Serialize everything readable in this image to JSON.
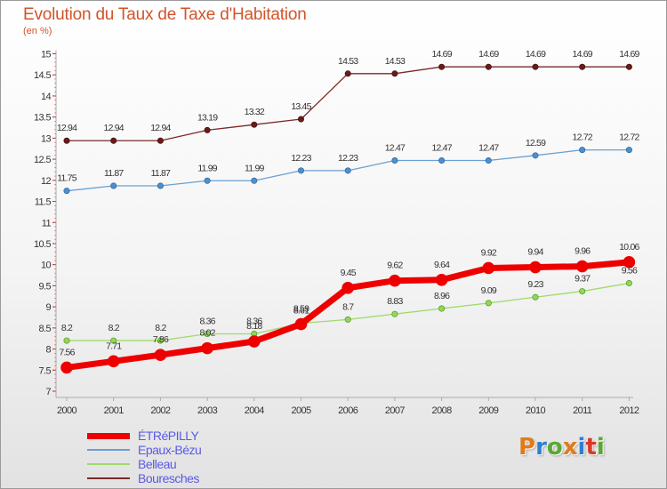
{
  "title": "Evolution du Taux de Taxe d'Habitation",
  "subtitle": "(en %)",
  "logo": {
    "text": "Proxiti",
    "colors": [
      "#e07b1a",
      "#2e7fd1",
      "#5aa832",
      "#e07b1a",
      "#2e7fd1",
      "#d73a2a",
      "#5aa832"
    ]
  },
  "chart_data": {
    "type": "line",
    "title": "Evolution du Taux de Taxe d'Habitation",
    "ylabel": "(en %)",
    "xlabel": "",
    "x": [
      "2000",
      "2001",
      "2002",
      "2003",
      "2004",
      "2005",
      "2006",
      "2007",
      "2008",
      "2009",
      "2010",
      "2011",
      "2012"
    ],
    "ylim": [
      7,
      15
    ],
    "yticks": [
      "7",
      "7.5",
      "8",
      "8.5",
      "9",
      "9.5",
      "10",
      "10.5",
      "11",
      "11.5",
      "12",
      "12.5",
      "13",
      "13.5",
      "14",
      "14.5",
      "15"
    ],
    "grid": false,
    "legend": "bottom-left",
    "series": [
      {
        "name": "ÉTRéPILLY",
        "color": "#ee0000",
        "values": [
          7.56,
          7.71,
          7.86,
          8.02,
          8.18,
          8.59,
          9.45,
          9.62,
          9.64,
          9.92,
          9.94,
          9.96,
          10.06
        ],
        "labels": [
          "7.56",
          "7.71",
          "7.86",
          "8.02",
          "8.18",
          "8.59",
          "9.45",
          "9.62",
          "9.64",
          "9.92",
          "9.94",
          "9.96",
          "10.06"
        ]
      },
      {
        "name": "Epaux-Bézu",
        "color": "#6aa0d2",
        "values": [
          11.75,
          11.87,
          11.87,
          11.99,
          11.99,
          12.23,
          12.23,
          12.47,
          12.47,
          12.47,
          12.59,
          12.72,
          12.72
        ],
        "labels": [
          "11.75",
          "11.87",
          "11.87",
          "11.99",
          "11.99",
          "12.23",
          "12.23",
          "12.47",
          "12.47",
          "12.47",
          "12.59",
          "12.72",
          "12.72"
        ]
      },
      {
        "name": "Belleau",
        "color": "#9fda6a",
        "values": [
          8.2,
          8.2,
          8.2,
          8.36,
          8.36,
          8.61,
          8.7,
          8.83,
          8.96,
          9.09,
          9.23,
          9.37,
          9.56
        ],
        "labels": [
          "8.2",
          "8.2",
          "8.2",
          "8.36",
          "8.36",
          "8.61",
          "8.7",
          "8.83",
          "8.96",
          "9.09",
          "9.23",
          "9.37",
          "9.56"
        ]
      },
      {
        "name": "Bouresches",
        "color": "#7a2a2a",
        "values": [
          12.94,
          12.94,
          12.94,
          13.19,
          13.32,
          13.45,
          14.53,
          14.53,
          14.69,
          14.69,
          14.69,
          14.69,
          14.69
        ],
        "labels": [
          "12.94",
          "12.94",
          "12.94",
          "13.19",
          "13.32",
          "13.45",
          "14.53",
          "14.53",
          "14.69",
          "14.69",
          "14.69",
          "14.69",
          "14.69"
        ]
      }
    ]
  }
}
